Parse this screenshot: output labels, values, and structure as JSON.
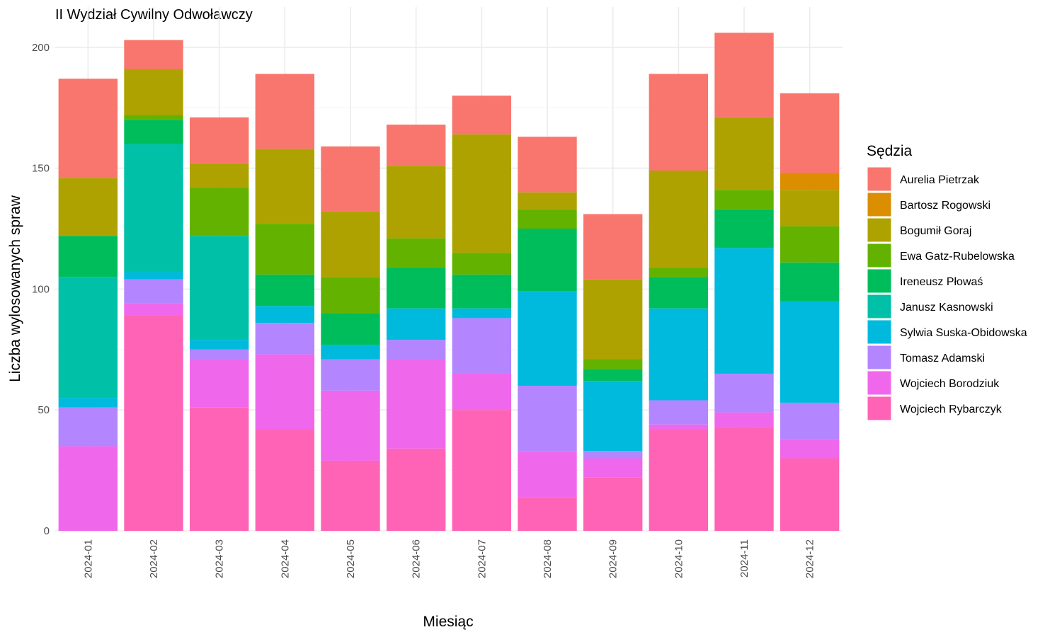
{
  "chart_data": {
    "type": "bar",
    "stacked": true,
    "title": "II Wydział Cywilny Odwoławczy",
    "xlabel": "Miesiąc",
    "ylabel": "Liczba wylosowanych spraw",
    "ylim": [
      0,
      206
    ],
    "yticks": [
      0,
      50,
      100,
      150,
      200
    ],
    "grid": true,
    "legend_title": "Sędzia",
    "legend_position": "right",
    "categories": [
      "2024-01",
      "2024-02",
      "2024-03",
      "2024-04",
      "2024-05",
      "2024-06",
      "2024-07",
      "2024-08",
      "2024-09",
      "2024-10",
      "2024-11",
      "2024-12"
    ],
    "series": [
      {
        "name": "Aurelia Pietrzak",
        "color": "#F8766D",
        "values": [
          41,
          12,
          19,
          31,
          27,
          17,
          16,
          23,
          27,
          40,
          35,
          33
        ]
      },
      {
        "name": "Bartosz Rogowski",
        "color": "#DB8E00",
        "values": [
          0,
          0,
          0,
          0,
          0,
          0,
          0,
          0,
          0,
          0,
          0,
          7
        ]
      },
      {
        "name": "Bogumił Goraj",
        "color": "#AEA200",
        "values": [
          24,
          19,
          10,
          31,
          27,
          30,
          49,
          7,
          33,
          40,
          30,
          15
        ]
      },
      {
        "name": "Ewa Gatz-Rubelowska",
        "color": "#64B200",
        "values": [
          0,
          2,
          20,
          21,
          15,
          12,
          9,
          8,
          4,
          4,
          8,
          15
        ]
      },
      {
        "name": "Ireneusz Płowaś",
        "color": "#00BD5C",
        "values": [
          17,
          10,
          0,
          13,
          13,
          17,
          14,
          26,
          5,
          13,
          16,
          16
        ]
      },
      {
        "name": "Janusz Kasnowski",
        "color": "#00C1A7",
        "values": [
          50,
          53,
          43,
          0,
          0,
          0,
          0,
          0,
          0,
          0,
          0,
          0
        ]
      },
      {
        "name": "Sylwia Suska-Obidowska",
        "color": "#00BADE",
        "values": [
          4,
          3,
          4,
          7,
          6,
          13,
          4,
          39,
          29,
          38,
          52,
          42
        ]
      },
      {
        "name": "Tomasz Adamski",
        "color": "#B385FF",
        "values": [
          16,
          10,
          4,
          13,
          13,
          8,
          23,
          27,
          3,
          10,
          16,
          15
        ]
      },
      {
        "name": "Wojciech Borodziuk",
        "color": "#EF67EB",
        "values": [
          35,
          5,
          20,
          31,
          29,
          37,
          15,
          19,
          8,
          2,
          6,
          8
        ]
      },
      {
        "name": "Wojciech Rybarczyk",
        "color": "#FF63B6",
        "values": [
          0,
          89,
          51,
          42,
          29,
          34,
          50,
          14,
          22,
          42,
          43,
          30
        ]
      }
    ]
  }
}
